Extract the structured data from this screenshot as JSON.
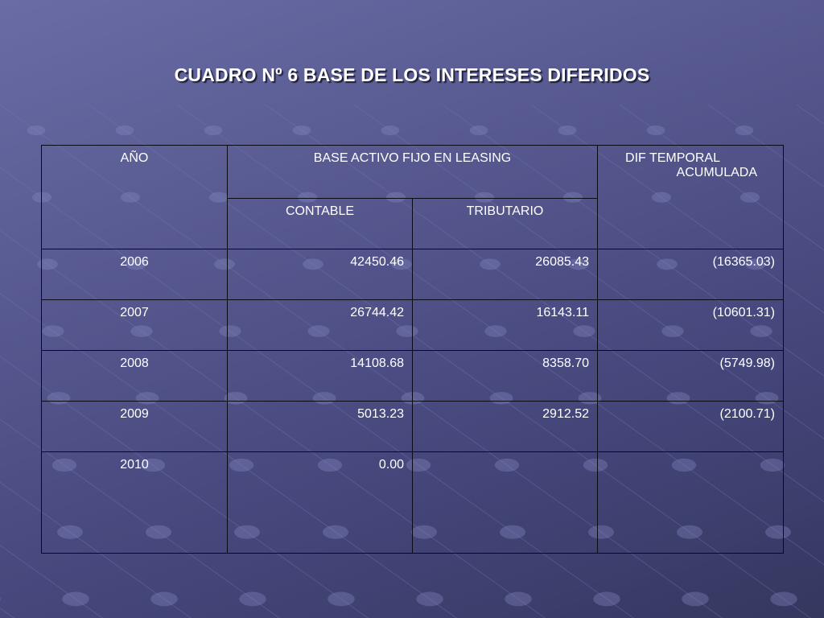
{
  "title": "CUADRO Nº 6 BASE DE LOS INTERESES DIFERIDOS",
  "table": {
    "headers": {
      "year": "AÑO",
      "base_group": "BASE ACTIVO FIJO EN LEASING",
      "contable": "CONTABLE",
      "tributario": "TRIBUTARIO",
      "dif_line1": "DIF TEMPORAL",
      "dif_line2": "ACUMULADA"
    },
    "rows": [
      {
        "year": "2006",
        "contable": "42450.46",
        "tributario": "26085.43",
        "dif": "(16365.03)"
      },
      {
        "year": "2007",
        "contable": "26744.42",
        "tributario": "16143.11",
        "dif": "(10601.31)"
      },
      {
        "year": "2008",
        "contable": "14108.68",
        "tributario": "8358.70",
        "dif": "(5749.98)"
      },
      {
        "year": "2009",
        "contable": "5013.23",
        "tributario": "2912.52",
        "dif": "(2100.71)"
      },
      {
        "year": "2010",
        "contable": "0.00",
        "tributario": "",
        "dif": ""
      }
    ]
  }
}
